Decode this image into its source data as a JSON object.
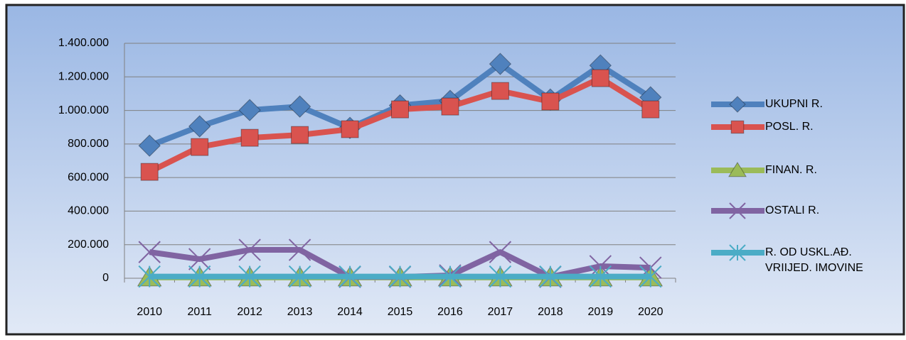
{
  "chart_data": {
    "type": "line",
    "categories": [
      "2010",
      "2011",
      "2012",
      "2013",
      "2014",
      "2015",
      "2016",
      "2017",
      "2018",
      "2019",
      "2020"
    ],
    "series": [
      {
        "name": "UKUPNI R.",
        "color": "#4f81bd",
        "marker": "diamond",
        "values": [
          790000,
          905000,
          1002000,
          1023000,
          896000,
          1030000,
          1057000,
          1277000,
          1065000,
          1268000,
          1078000
        ]
      },
      {
        "name": "POSL. R.",
        "color": "#d9534f",
        "marker": "square",
        "values": [
          634000,
          782000,
          837000,
          854000,
          888000,
          1006000,
          1023000,
          1116000,
          1053000,
          1192000,
          1006000
        ]
      },
      {
        "name": "FINAN. R.",
        "color": "#9bbb59",
        "marker": "triangle",
        "values": [
          5000,
          5000,
          5000,
          5000,
          5000,
          5000,
          5000,
          5000,
          5000,
          5000,
          5000
        ]
      },
      {
        "name": "OSTALI R.",
        "color": "#8064a2",
        "marker": "x",
        "values": [
          156000,
          114000,
          169000,
          169000,
          8000,
          8000,
          17000,
          156000,
          8000,
          72000,
          63000
        ]
      },
      {
        "name": "R. OD  USKL.AĐ. VRIIJED. IMOVINE",
        "color": "#4bacc6",
        "marker": "star",
        "values": [
          10000,
          10000,
          10000,
          10000,
          10000,
          10000,
          10000,
          10000,
          10000,
          10000,
          10000
        ]
      }
    ],
    "ylim": [
      0,
      1400000
    ],
    "yticks": [
      0,
      {
        "value": 200000,
        "label": "200.000"
      },
      {
        "value": 400000,
        "label": "400.000"
      },
      {
        "value": 600000,
        "label": "600.000"
      },
      {
        "value": 800000,
        "label": "800.000"
      },
      {
        "value": 1000000,
        "label": "1.000.000"
      },
      {
        "value": 1200000,
        "label": "1.200.000"
      },
      {
        "value": 1400000,
        "label": "1.400.000"
      }
    ],
    "grid": true,
    "legend": "right"
  }
}
